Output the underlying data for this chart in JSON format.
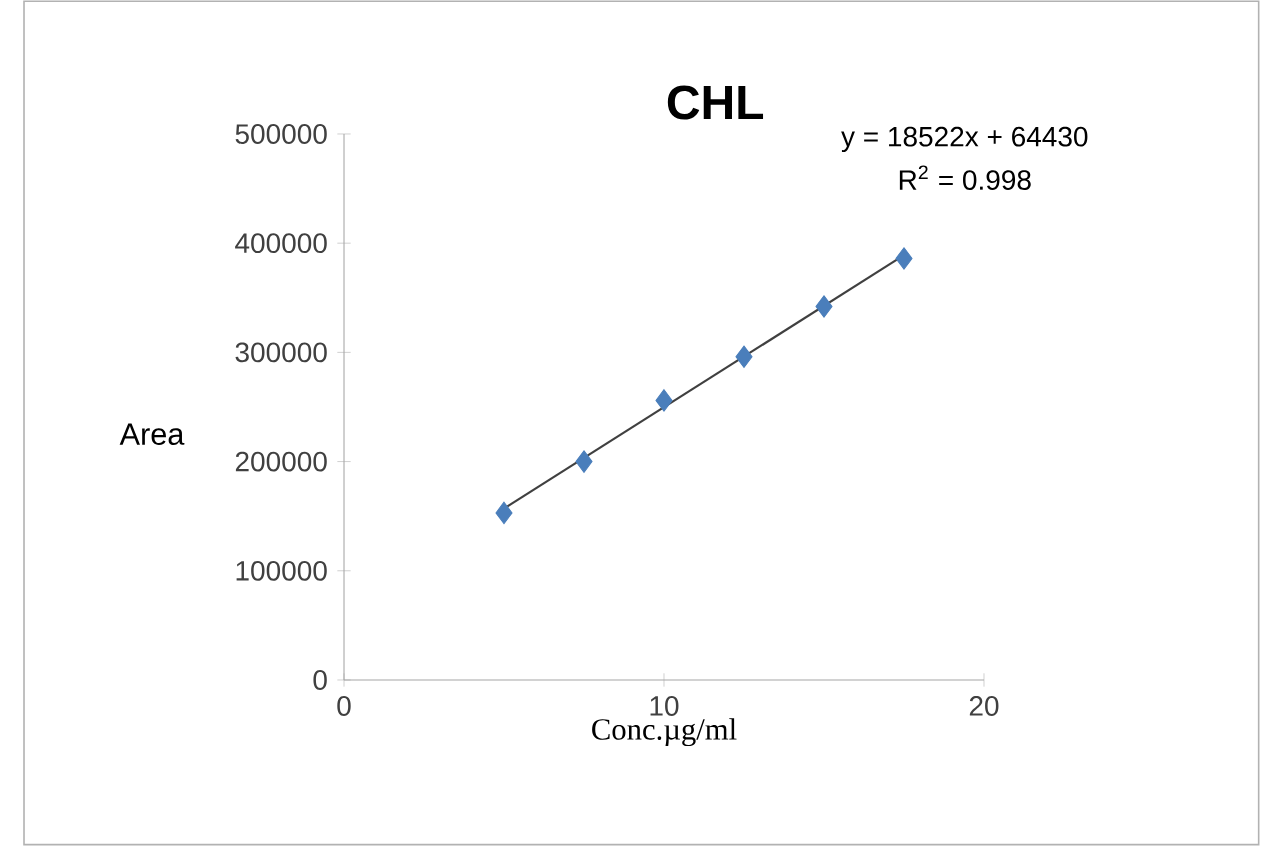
{
  "chart_data": {
    "type": "scatter",
    "title": "CHL",
    "xlabel": "Conc.µg/ml",
    "ylabel": "Area",
    "annotations": [
      "y = 18522x + 64430",
      "R$^{2}$ = 0.998"
    ],
    "xlim": [
      0,
      20
    ],
    "xticks": [
      0,
      10,
      20
    ],
    "ylim": [
      0,
      500000
    ],
    "yticks": [
      0,
      100000,
      200000,
      300000,
      400000,
      500000
    ],
    "grid": false,
    "marker": "diamond",
    "series": [
      {
        "color": "#4a7ebb",
        "x": [
          5,
          7.5,
          10,
          12.5,
          15,
          17.5
        ],
        "values": [
          153000,
          200000,
          256000,
          296000,
          342000,
          386000
        ]
      },
      {
        "type": "line",
        "marker": "none",
        "color": "#404040",
        "x": [
          5,
          17.5
        ],
        "values": [
          157000,
          389000
        ]
      }
    ]
  }
}
